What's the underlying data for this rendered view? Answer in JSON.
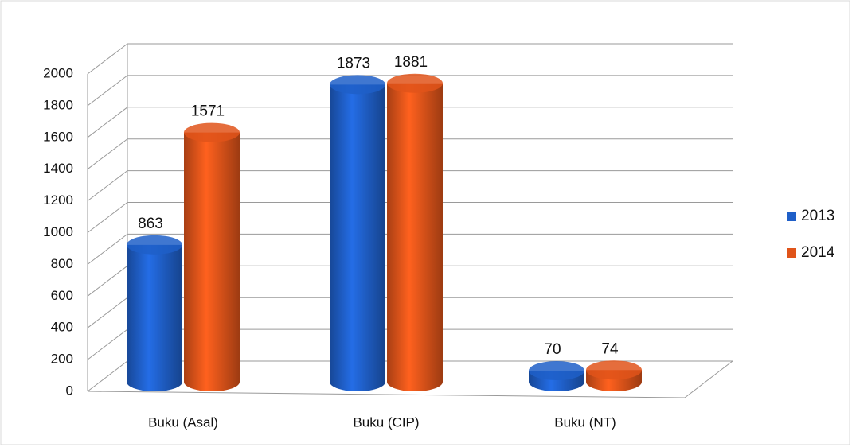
{
  "chart_data": {
    "type": "bar3d",
    "categories": [
      "Buku (Asal)",
      "Buku (CIP)",
      "Buku (NT)"
    ],
    "series": [
      {
        "name": "2013",
        "color": "#1f5fc8",
        "values": [
          863,
          1873,
          70
        ]
      },
      {
        "name": "2014",
        "color": "#e0541a",
        "values": [
          1571,
          1881,
          74
        ]
      }
    ],
    "ylim": [
      0,
      2000
    ],
    "yticks": [
      0,
      200,
      400,
      600,
      800,
      1000,
      1200,
      1400,
      1600,
      1800,
      2000
    ],
    "grid": true,
    "legend": "right"
  }
}
